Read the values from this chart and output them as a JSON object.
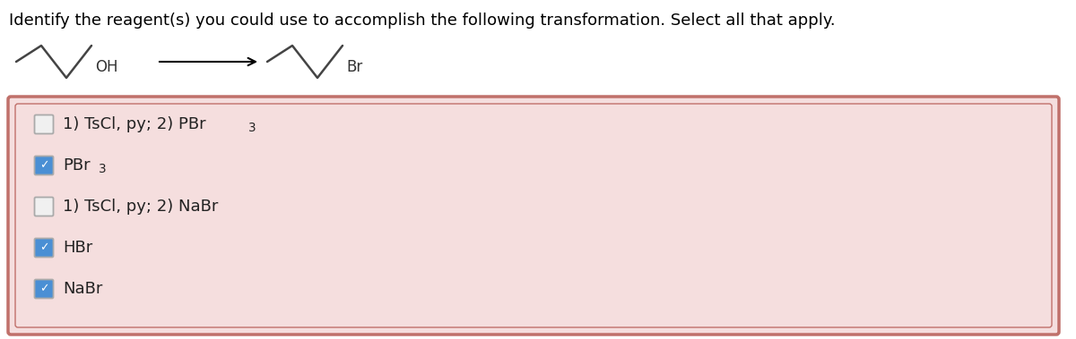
{
  "title_text": "Identify the reagent(s) you could use to accomplish the following transformation. Select all that apply.",
  "title_fontsize": 13,
  "background_color": "#ffffff",
  "box_bg_color": "#f5dede",
  "box_border_color": "#c0706a",
  "options": [
    {
      "label_parts": [
        {
          "text": "1) TsCl, py; 2) PBr",
          "sub": false
        },
        {
          "text": "3",
          "sub": true
        }
      ],
      "checked": false
    },
    {
      "label_parts": [
        {
          "text": "PBr",
          "sub": false
        },
        {
          "text": "3",
          "sub": true
        }
      ],
      "checked": true
    },
    {
      "label_parts": [
        {
          "text": "1) TsCl, py; 2) NaBr",
          "sub": false
        }
      ],
      "checked": false
    },
    {
      "label_parts": [
        {
          "text": "HBr",
          "sub": false
        }
      ],
      "checked": true
    },
    {
      "label_parts": [
        {
          "text": "NaBr",
          "sub": false
        }
      ],
      "checked": true
    }
  ],
  "checked_color": "#4a8fd4",
  "unchecked_color": "#f0f0f0",
  "checkbox_edge_color": "#aaaaaa",
  "option_fontsize": 13,
  "arrow_color": "#000000",
  "molecule_color": "#444444",
  "mol_label_color": "#333333"
}
